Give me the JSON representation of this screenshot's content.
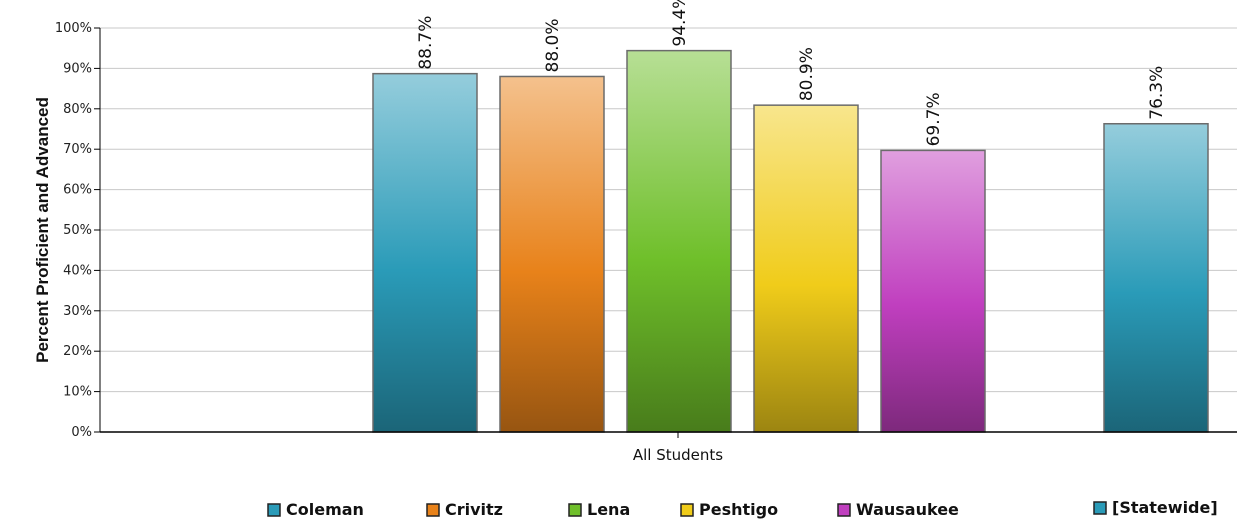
{
  "chart_data": {
    "type": "bar",
    "title": "",
    "xlabel": "",
    "ylabel": "Percent Proficient and Advanced",
    "categories": [
      "All Students"
    ],
    "ylim": [
      0,
      100
    ],
    "yticks": [
      "0%",
      "10%",
      "20%",
      "30%",
      "40%",
      "50%",
      "60%",
      "70%",
      "80%",
      "90%",
      "100%"
    ],
    "grid": true,
    "legend_position": "bottom",
    "series": [
      {
        "name": "Coleman",
        "values": [
          88.7
        ],
        "label": "88.7%",
        "color": "#2a9bb8"
      },
      {
        "name": "Crivitz",
        "values": [
          88.0
        ],
        "label": "88.0%",
        "color": "#e8821a"
      },
      {
        "name": "Lena",
        "values": [
          94.4
        ],
        "label": "94.4%",
        "color": "#6fbf2a"
      },
      {
        "name": "Peshtigo",
        "values": [
          80.9
        ],
        "label": "80.9%",
        "color": "#f0cc1a"
      },
      {
        "name": "Wausaukee",
        "values": [
          69.7
        ],
        "label": "69.7%",
        "color": "#c03fbf"
      },
      {
        "name": "[Statewide]",
        "values": [
          76.3
        ],
        "label": "76.3%",
        "color": "#2a9bb8"
      }
    ]
  }
}
